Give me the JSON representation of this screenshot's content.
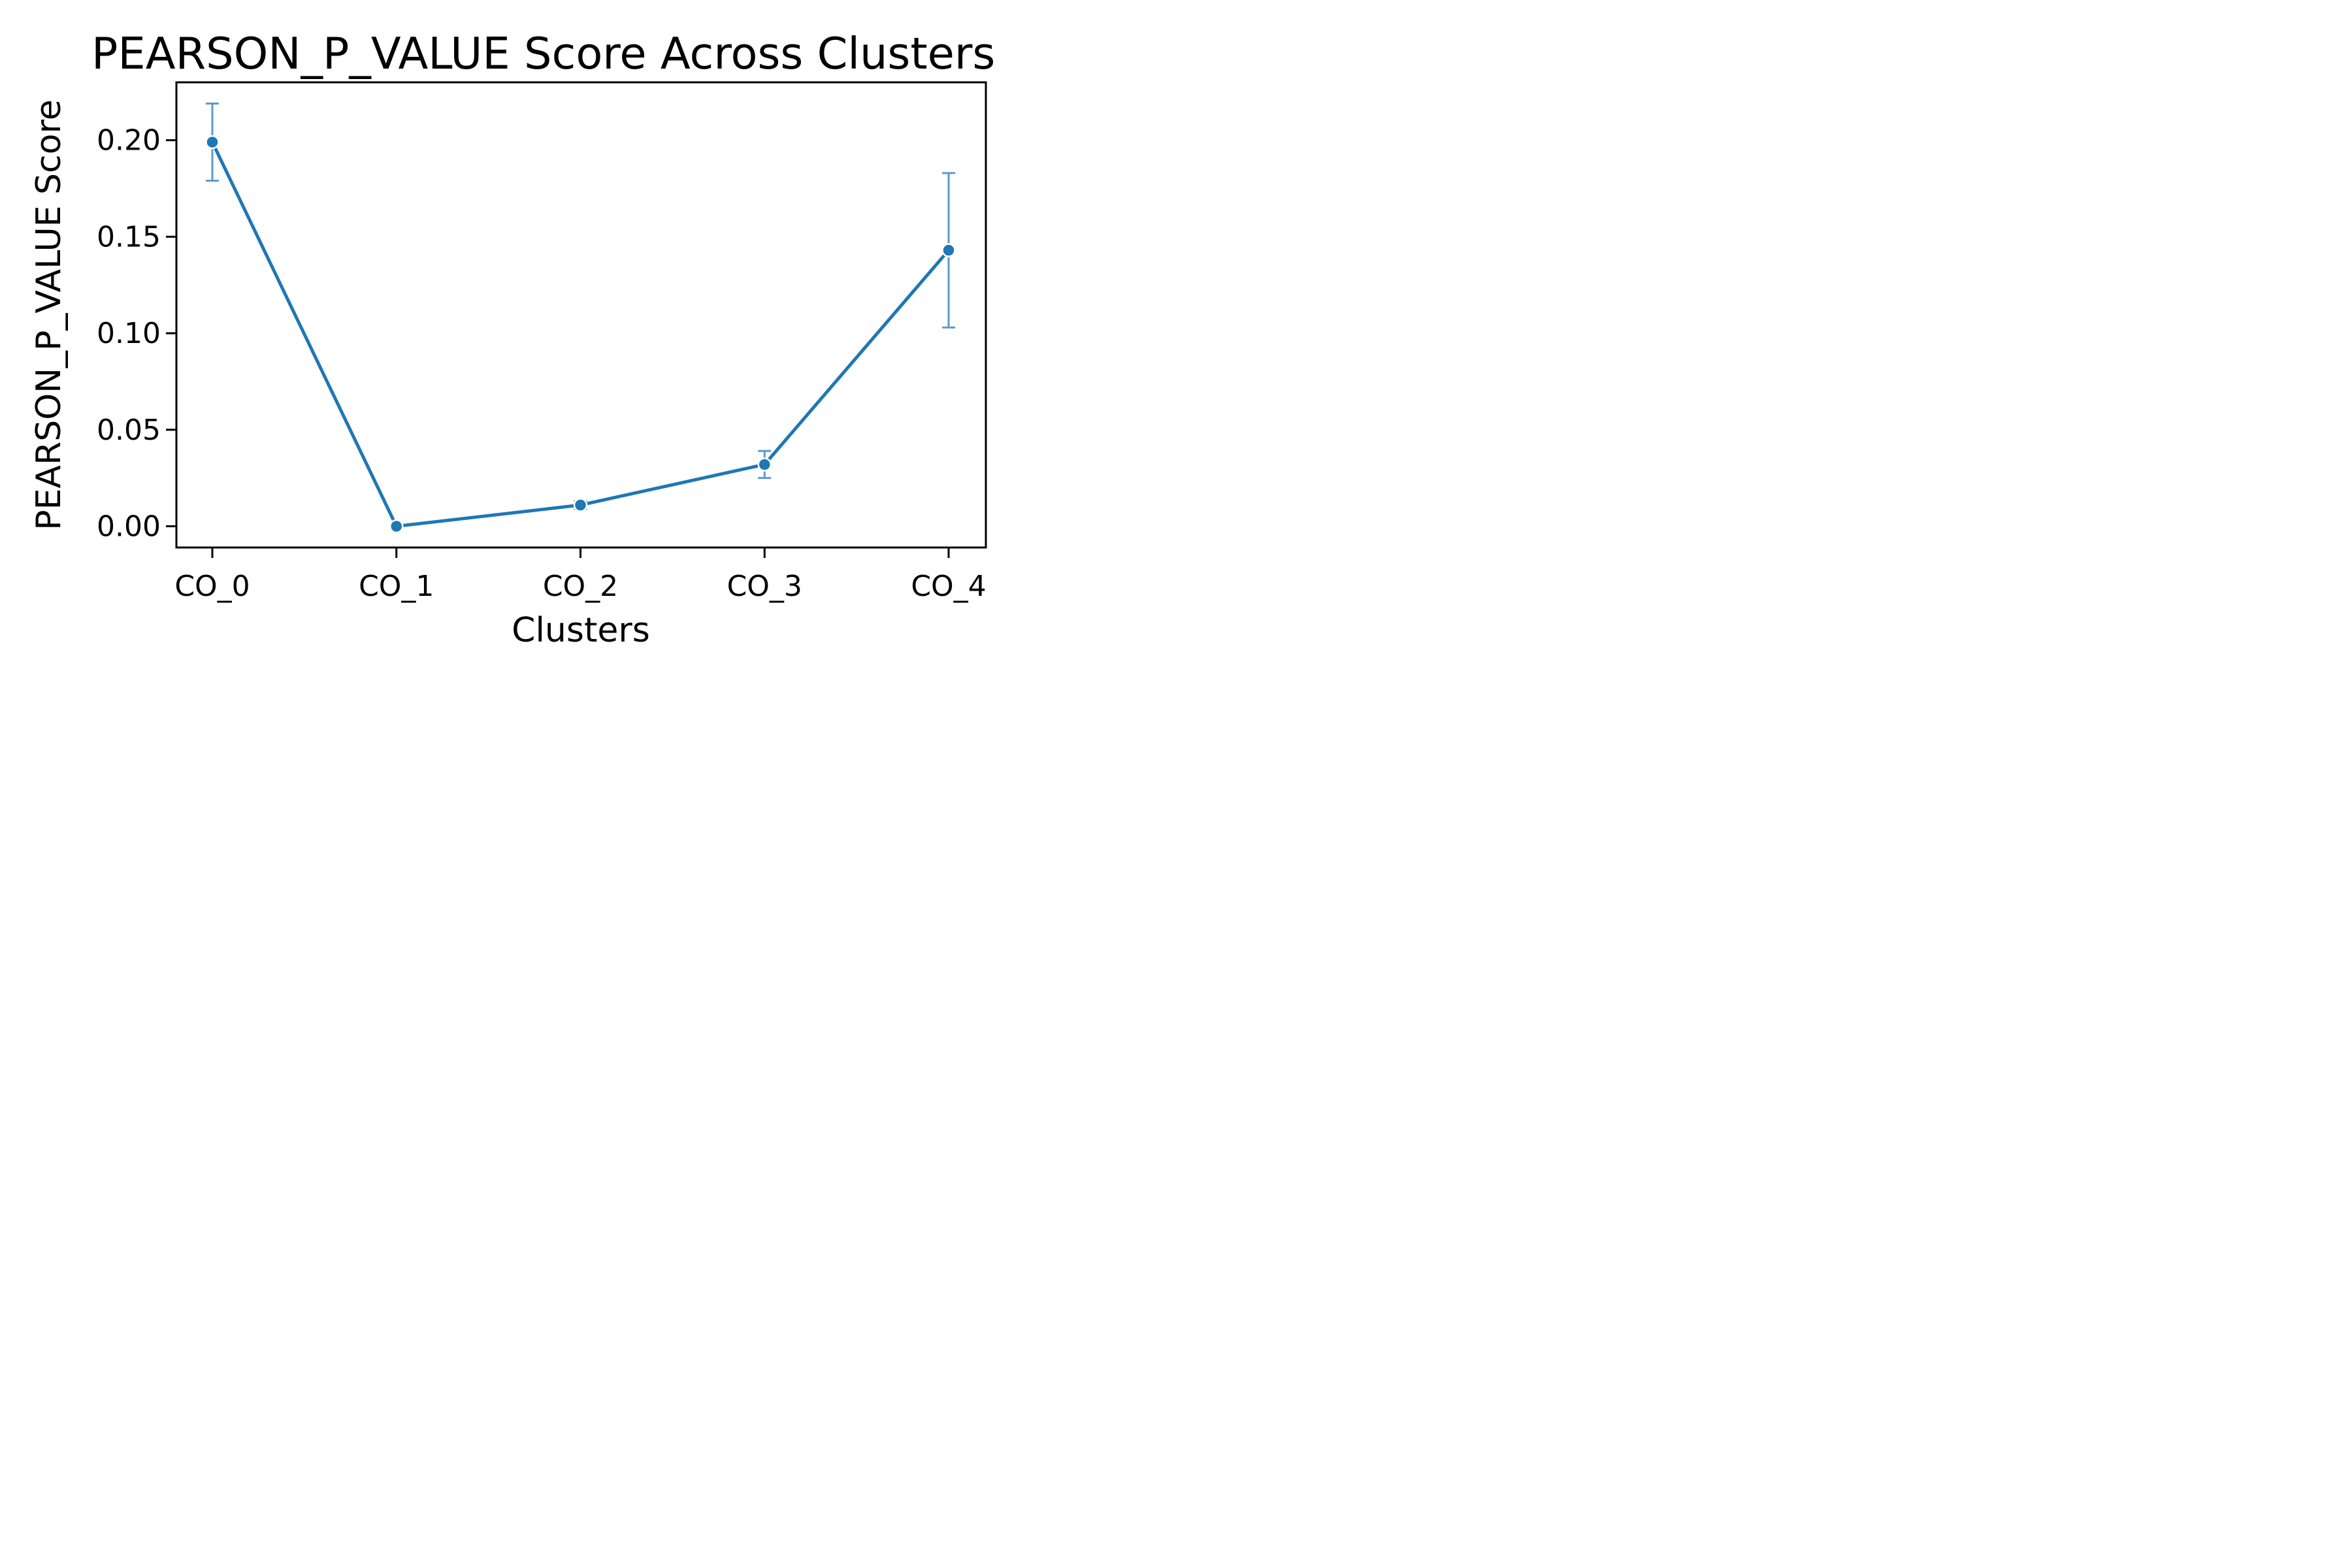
{
  "chart_data": {
    "type": "line",
    "title": "PEARSON_P_VALUE Score Across Clusters",
    "xlabel": "Clusters",
    "ylabel": "PEARSON_P_VALUE Score",
    "categories": [
      "CO_0",
      "CO_1",
      "CO_2",
      "CO_3",
      "CO_4"
    ],
    "series": [
      {
        "values": [
          0.199,
          0.0,
          0.011,
          0.032,
          0.143
        ],
        "error_low": [
          0.179,
          0.0,
          0.009,
          0.025,
          0.103
        ],
        "error_high": [
          0.219,
          0.0,
          0.013,
          0.039,
          0.183
        ],
        "color": "#1f77b4",
        "error_color": "#5a9bcb"
      }
    ],
    "ylim": [
      -0.011,
      0.23
    ],
    "yticks": [
      0.0,
      0.05,
      0.1,
      0.15,
      0.2
    ],
    "ytick_labels": [
      "0.00",
      "0.05",
      "0.10",
      "0.15",
      "0.20"
    ],
    "grid": false
  }
}
